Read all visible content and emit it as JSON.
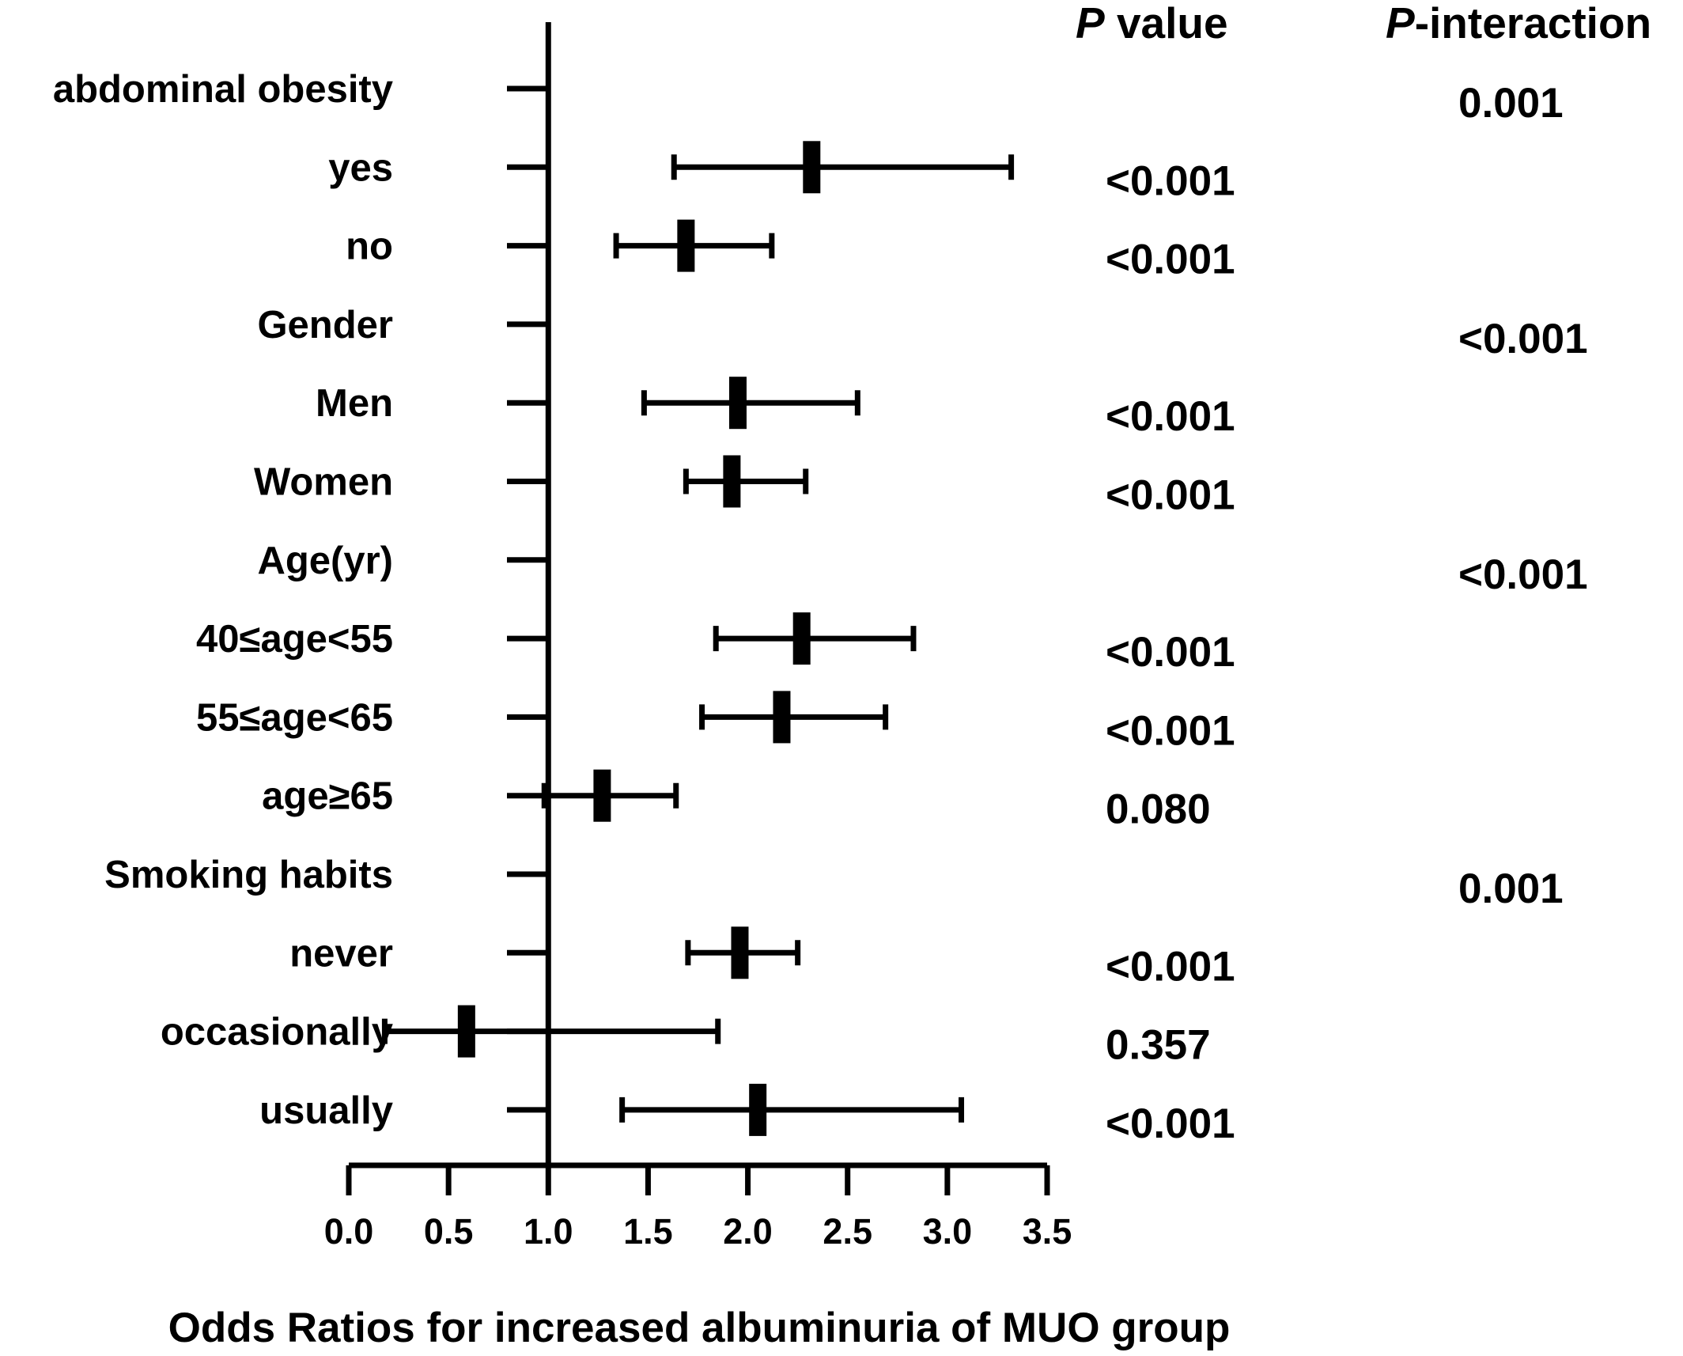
{
  "chart_data": {
    "type": "forest",
    "xlabel": "Odds Ratios for increased albuminuria of MUO group",
    "xlim": [
      0.0,
      3.5
    ],
    "xticks": [
      "0.0",
      "0.5",
      "1.0",
      "1.5",
      "2.0",
      "2.5",
      "3.0",
      "3.5"
    ],
    "reference_line": 1.0,
    "column_headers": {
      "p_value_italic": "P",
      "p_value_rest": " value",
      "p_interaction_italic": "P",
      "p_interaction_rest": "-interaction"
    },
    "rows": [
      {
        "label": "abdominal obesity",
        "header": true,
        "p_interaction": "0.001"
      },
      {
        "label": "yes",
        "or": 2.32,
        "lo": 1.63,
        "hi": 3.32,
        "p_value": "<0.001"
      },
      {
        "label": "no",
        "or": 1.69,
        "lo": 1.34,
        "hi": 2.12,
        "p_value": "<0.001"
      },
      {
        "label": "Gender",
        "header": true,
        "p_interaction": "<0.001"
      },
      {
        "label": "Men",
        "or": 1.95,
        "lo": 1.48,
        "hi": 2.55,
        "p_value": "<0.001"
      },
      {
        "label": "Women",
        "or": 1.92,
        "lo": 1.69,
        "hi": 2.29,
        "p_value": "<0.001"
      },
      {
        "label": "Age(yr)",
        "header": true,
        "p_interaction": "<0.001"
      },
      {
        "label": "40≤age<55",
        "or": 2.27,
        "lo": 1.84,
        "hi": 2.83,
        "p_value": "<0.001"
      },
      {
        "label": "55≤age<65",
        "or": 2.17,
        "lo": 1.77,
        "hi": 2.69,
        "p_value": "<0.001"
      },
      {
        "label": "age≥65",
        "or": 1.27,
        "lo": 0.98,
        "hi": 1.64,
        "p_value": "0.080"
      },
      {
        "label": "Smoking habits",
        "header": true,
        "p_interaction": "0.001"
      },
      {
        "label": "never",
        "or": 1.96,
        "lo": 1.7,
        "hi": 2.25,
        "p_value": "<0.001"
      },
      {
        "label": "occasionally",
        "or": 0.59,
        "lo": 0.18,
        "hi": 1.85,
        "p_value": "0.357"
      },
      {
        "label": "usually",
        "or": 2.05,
        "lo": 1.37,
        "hi": 3.07,
        "p_value": "<0.001"
      }
    ]
  }
}
